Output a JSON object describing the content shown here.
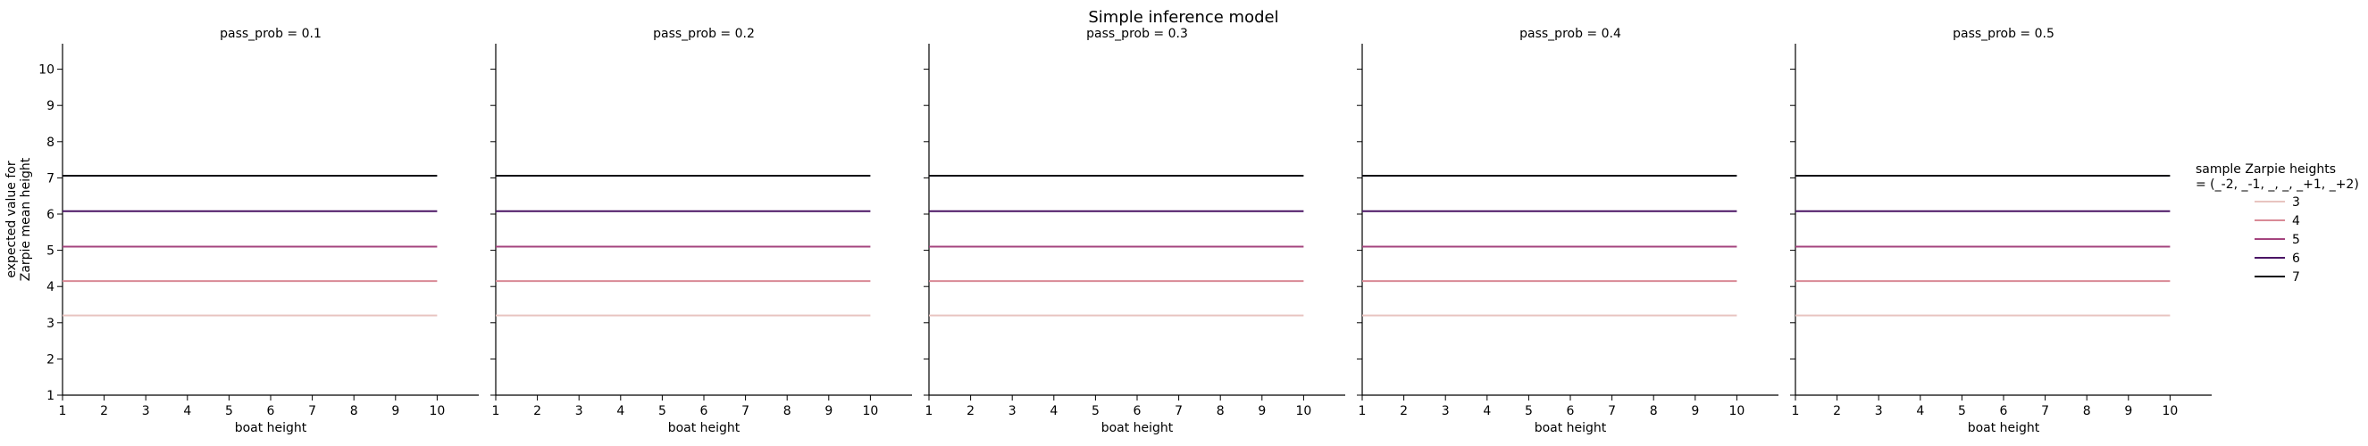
{
  "chart_data": {
    "type": "line",
    "title": "Simple inference model",
    "xlabel": "boat height",
    "ylabel": "expected value for\nZarpie mean height",
    "xlim": [
      1,
      11
    ],
    "ylim": [
      1,
      11
    ],
    "xticks": [
      1,
      2,
      3,
      4,
      5,
      6,
      7,
      8,
      9,
      10
    ],
    "yticks": [
      1,
      2,
      3,
      4,
      5,
      6,
      7,
      8,
      9,
      10
    ],
    "x": [
      1,
      2,
      3,
      4,
      5,
      6,
      7,
      8,
      9,
      10
    ],
    "legend": {
      "title": "sample Zarpie heights\n= (_-2, _-1, _, _, _+1, _+2)",
      "placement": "right"
    },
    "facets": [
      {
        "label": "pass_prob = 0.1",
        "series": [
          {
            "name": "3",
            "color": "#e8c4c0",
            "values": [
              3.2,
              3.2,
              3.2,
              3.2,
              3.2,
              3.2,
              3.2,
              3.2,
              3.2,
              3.2
            ]
          },
          {
            "name": "4",
            "color": "#d98a96",
            "values": [
              4.15,
              4.15,
              4.15,
              4.15,
              4.15,
              4.15,
              4.15,
              4.15,
              4.15,
              4.15
            ]
          },
          {
            "name": "5",
            "color": "#a4447e",
            "values": [
              5.1,
              5.1,
              5.1,
              5.1,
              5.1,
              5.1,
              5.1,
              5.1,
              5.1,
              5.1
            ]
          },
          {
            "name": "6",
            "color": "#4a1464",
            "values": [
              6.08,
              6.08,
              6.08,
              6.08,
              6.08,
              6.08,
              6.08,
              6.08,
              6.08,
              6.08
            ]
          },
          {
            "name": "7",
            "color": "#0b0b14",
            "values": [
              7.06,
              7.06,
              7.06,
              7.06,
              7.06,
              7.06,
              7.06,
              7.06,
              7.06,
              7.06
            ]
          }
        ]
      },
      {
        "label": "pass_prob = 0.2",
        "series": [
          {
            "name": "3",
            "color": "#e8c4c0",
            "values": [
              3.2,
              3.2,
              3.2,
              3.2,
              3.2,
              3.2,
              3.2,
              3.2,
              3.2,
              3.2
            ]
          },
          {
            "name": "4",
            "color": "#d98a96",
            "values": [
              4.15,
              4.15,
              4.15,
              4.15,
              4.15,
              4.15,
              4.15,
              4.15,
              4.15,
              4.15
            ]
          },
          {
            "name": "5",
            "color": "#a4447e",
            "values": [
              5.1,
              5.1,
              5.1,
              5.1,
              5.1,
              5.1,
              5.1,
              5.1,
              5.1,
              5.1
            ]
          },
          {
            "name": "6",
            "color": "#4a1464",
            "values": [
              6.08,
              6.08,
              6.08,
              6.08,
              6.08,
              6.08,
              6.08,
              6.08,
              6.08,
              6.08
            ]
          },
          {
            "name": "7",
            "color": "#0b0b14",
            "values": [
              7.06,
              7.06,
              7.06,
              7.06,
              7.06,
              7.06,
              7.06,
              7.06,
              7.06,
              7.06
            ]
          }
        ]
      },
      {
        "label": "pass_prob = 0.3",
        "series": [
          {
            "name": "3",
            "color": "#e8c4c0",
            "values": [
              3.2,
              3.2,
              3.2,
              3.2,
              3.2,
              3.2,
              3.2,
              3.2,
              3.2,
              3.2
            ]
          },
          {
            "name": "4",
            "color": "#d98a96",
            "values": [
              4.15,
              4.15,
              4.15,
              4.15,
              4.15,
              4.15,
              4.15,
              4.15,
              4.15,
              4.15
            ]
          },
          {
            "name": "5",
            "color": "#a4447e",
            "values": [
              5.1,
              5.1,
              5.1,
              5.1,
              5.1,
              5.1,
              5.1,
              5.1,
              5.1,
              5.1
            ]
          },
          {
            "name": "6",
            "color": "#4a1464",
            "values": [
              6.08,
              6.08,
              6.08,
              6.08,
              6.08,
              6.08,
              6.08,
              6.08,
              6.08,
              6.08
            ]
          },
          {
            "name": "7",
            "color": "#0b0b14",
            "values": [
              7.06,
              7.06,
              7.06,
              7.06,
              7.06,
              7.06,
              7.06,
              7.06,
              7.06,
              7.06
            ]
          }
        ]
      },
      {
        "label": "pass_prob = 0.4",
        "series": [
          {
            "name": "3",
            "color": "#e8c4c0",
            "values": [
              3.2,
              3.2,
              3.2,
              3.2,
              3.2,
              3.2,
              3.2,
              3.2,
              3.2,
              3.2
            ]
          },
          {
            "name": "4",
            "color": "#d98a96",
            "values": [
              4.15,
              4.15,
              4.15,
              4.15,
              4.15,
              4.15,
              4.15,
              4.15,
              4.15,
              4.15
            ]
          },
          {
            "name": "5",
            "color": "#a4447e",
            "values": [
              5.1,
              5.1,
              5.1,
              5.1,
              5.1,
              5.1,
              5.1,
              5.1,
              5.1,
              5.1
            ]
          },
          {
            "name": "6",
            "color": "#4a1464",
            "values": [
              6.08,
              6.08,
              6.08,
              6.08,
              6.08,
              6.08,
              6.08,
              6.08,
              6.08,
              6.08
            ]
          },
          {
            "name": "7",
            "color": "#0b0b14",
            "values": [
              7.06,
              7.06,
              7.06,
              7.06,
              7.06,
              7.06,
              7.06,
              7.06,
              7.06,
              7.06
            ]
          }
        ]
      },
      {
        "label": "pass_prob = 0.5",
        "series": [
          {
            "name": "3",
            "color": "#e8c4c0",
            "values": [
              3.2,
              3.2,
              3.2,
              3.2,
              3.2,
              3.2,
              3.2,
              3.2,
              3.2,
              3.2
            ]
          },
          {
            "name": "4",
            "color": "#d98a96",
            "values": [
              4.15,
              4.15,
              4.15,
              4.15,
              4.15,
              4.15,
              4.15,
              4.15,
              4.15,
              4.15
            ]
          },
          {
            "name": "5",
            "color": "#a4447e",
            "values": [
              5.1,
              5.1,
              5.1,
              5.1,
              5.1,
              5.1,
              5.1,
              5.1,
              5.1,
              5.1
            ]
          },
          {
            "name": "6",
            "color": "#4a1464",
            "values": [
              6.08,
              6.08,
              6.08,
              6.08,
              6.08,
              6.08,
              6.08,
              6.08,
              6.08,
              6.08
            ]
          },
          {
            "name": "7",
            "color": "#0b0b14",
            "values": [
              7.06,
              7.06,
              7.06,
              7.06,
              7.06,
              7.06,
              7.06,
              7.06,
              7.06,
              7.06
            ]
          }
        ]
      }
    ]
  }
}
